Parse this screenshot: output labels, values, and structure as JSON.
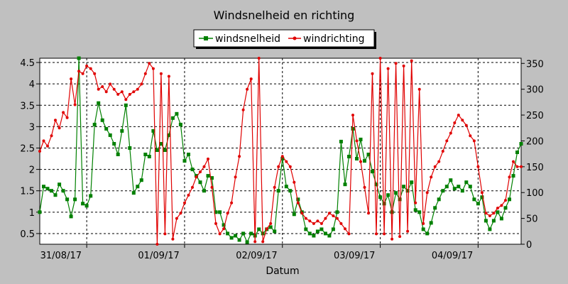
{
  "chart_data": {
    "type": "line",
    "title": "Windsnelheid en richting",
    "xlabel": "Datum",
    "ylabel": "",
    "y2label": "",
    "legend_position": "top-center",
    "grid": true,
    "xlim": [
      -0.48,
      4.44
    ],
    "ylim": [
      0.25,
      4.6
    ],
    "y2lim": [
      0,
      360
    ],
    "x_ticks": [
      {
        "x": -0.5,
        "label": "31/08/17"
      },
      {
        "x": 0.5,
        "label": "01/09/17"
      },
      {
        "x": 1.5,
        "label": "02/09/17"
      },
      {
        "x": 2.5,
        "label": "03/09/17"
      },
      {
        "x": 3.5,
        "label": "04/09/17"
      }
    ],
    "y_ticks": [
      "0.5",
      "1",
      "1.5",
      "2",
      "2.5",
      "3",
      "3.5",
      "4",
      "4.5"
    ],
    "y2_ticks": [
      "0",
      "50",
      "100",
      "150",
      "200",
      "250",
      "300",
      "350"
    ],
    "colors": {
      "windsnelheid": "#008000",
      "windrichting": "#e00000"
    },
    "series": [
      {
        "name": "windsnelheid",
        "axis": "left",
        "marker": "square",
        "x": [
          -0.48,
          -0.44,
          -0.4,
          -0.36,
          -0.32,
          -0.28,
          -0.24,
          -0.2,
          -0.16,
          -0.12,
          -0.08,
          -0.04,
          0.0,
          0.04,
          0.08,
          0.12,
          0.16,
          0.2,
          0.24,
          0.28,
          0.32,
          0.36,
          0.4,
          0.44,
          0.48,
          0.52,
          0.56,
          0.6,
          0.64,
          0.68,
          0.72,
          0.76,
          0.8,
          0.84,
          0.88,
          0.92,
          0.96,
          1.0,
          1.04,
          1.08,
          1.12,
          1.16,
          1.2,
          1.24,
          1.28,
          1.32,
          1.36,
          1.4,
          1.44,
          1.48,
          1.52,
          1.56,
          1.6,
          1.64,
          1.68,
          1.72,
          1.76,
          1.8,
          1.84,
          1.88,
          1.92,
          1.96,
          2.0,
          2.04,
          2.08,
          2.12,
          2.16,
          2.2,
          2.24,
          2.28,
          2.32,
          2.36,
          2.4,
          2.44,
          2.48,
          2.52,
          2.56,
          2.6,
          2.64,
          2.68,
          2.72,
          2.76,
          2.8,
          2.84,
          2.88,
          2.92,
          2.96,
          3.0,
          3.04,
          3.08,
          3.12,
          3.16,
          3.2,
          3.24,
          3.28,
          3.32,
          3.36,
          3.4,
          3.44
        ],
        "y": [
          1.0,
          1.6,
          1.55,
          1.5,
          1.4,
          1.65,
          1.5,
          1.3,
          0.9,
          1.3,
          4.6,
          1.2,
          1.15,
          1.38,
          3.05,
          3.55,
          3.15,
          2.95,
          2.8,
          2.6,
          2.35,
          2.9,
          3.5,
          2.5,
          1.45,
          1.6,
          1.75,
          2.35,
          2.3,
          2.9,
          2.45,
          2.6,
          2.45,
          2.8,
          3.2,
          3.3,
          3.05,
          2.2,
          2.35,
          2.0,
          1.85,
          1.7,
          1.5,
          1.85,
          1.8,
          1.0,
          1.0,
          0.7,
          0.5,
          0.4,
          0.45,
          0.35,
          0.5,
          0.3,
          0.5,
          0.45,
          0.6,
          0.5,
          0.6,
          0.65,
          0.55,
          1.5,
          2.25,
          1.6,
          1.5,
          0.95,
          1.3,
          1.0,
          0.6,
          0.5,
          0.45,
          0.55,
          0.6,
          0.5,
          0.45,
          0.6,
          1.0,
          2.65,
          1.65,
          2.3,
          2.95,
          2.25,
          2.7,
          2.2,
          2.35,
          1.95,
          1.65,
          1.35,
          1.2,
          1.4,
          1.0,
          1.45,
          1.3,
          1.6,
          1.5,
          1.7,
          1.05,
          1.0,
          0.6
        ],
        "x_ext": [
          3.48,
          3.52,
          3.56,
          3.6,
          3.64,
          3.68,
          3.72,
          3.76,
          3.8,
          3.84,
          3.88,
          3.92,
          3.96,
          4.0,
          4.04,
          4.08,
          4.12,
          4.16,
          4.2,
          4.24,
          4.28,
          4.32,
          4.36,
          4.4,
          4.44
        ],
        "y_ext": [
          0.5,
          0.75,
          1.1,
          1.3,
          1.5,
          1.6,
          1.75,
          1.55,
          1.6,
          1.5,
          1.7,
          1.6,
          1.3,
          1.2,
          1.35,
          0.8,
          0.6,
          0.8,
          1.0,
          0.85,
          1.1,
          1.3,
          1.85,
          2.4,
          2.6
        ]
      },
      {
        "name": "windrichting",
        "axis": "right",
        "marker": "dot",
        "x": [
          -0.48,
          -0.44,
          -0.4,
          -0.36,
          -0.32,
          -0.28,
          -0.24,
          -0.2,
          -0.16,
          -0.12,
          -0.08,
          -0.04,
          0.0,
          0.04,
          0.08,
          0.12,
          0.16,
          0.2,
          0.24,
          0.28,
          0.32,
          0.36,
          0.4,
          0.44,
          0.48,
          0.52,
          0.56,
          0.6,
          0.64,
          0.68,
          0.72,
          0.76,
          0.8,
          0.84,
          0.88,
          0.92,
          0.96,
          1.0,
          1.04,
          1.08,
          1.12,
          1.16,
          1.2,
          1.24,
          1.28,
          1.32,
          1.36,
          1.4,
          1.44,
          1.48,
          1.52,
          1.56,
          1.6,
          1.64,
          1.68,
          1.72,
          1.76,
          1.8,
          1.84,
          1.88,
          1.92,
          1.96,
          2.0,
          2.04,
          2.08,
          2.12,
          2.16,
          2.2,
          2.24,
          2.28,
          2.32,
          2.36,
          2.4,
          2.44,
          2.48,
          2.52,
          2.56,
          2.6,
          2.64,
          2.68,
          2.72,
          2.76,
          2.8,
          2.84,
          2.88,
          2.92,
          2.96,
          3.0,
          3.04,
          3.08,
          3.12,
          3.16,
          3.2,
          3.24,
          3.28,
          3.32,
          3.36,
          3.4,
          3.44
        ],
        "y": [
          180,
          200,
          190,
          210,
          240,
          225,
          255,
          245,
          320,
          270,
          335,
          330,
          345,
          340,
          330,
          300,
          305,
          295,
          310,
          300,
          290,
          295,
          280,
          290,
          295,
          300,
          310,
          330,
          350,
          340,
          0,
          330,
          20,
          325,
          10,
          50,
          60,
          80,
          95,
          110,
          130,
          140,
          150,
          165,
          110,
          40,
          20,
          30,
          60,
          80,
          130,
          170,
          260,
          300,
          320,
          5,
          360,
          5,
          30,
          40,
          110,
          150,
          170,
          160,
          150,
          120,
          80,
          60,
          50,
          45,
          40,
          45,
          40,
          50,
          60,
          55,
          50,
          40,
          30,
          20,
          250,
          200,
          160,
          110,
          60,
          330,
          20,
          360,
          20,
          340,
          10,
          350,
          15,
          345,
          25,
          355,
          80,
          300,
          40
        ],
        "x_ext": [
          3.48,
          3.52,
          3.56,
          3.6,
          3.64,
          3.68,
          3.72,
          3.76,
          3.8,
          3.84,
          3.88,
          3.92,
          3.96,
          4.0,
          4.04,
          4.08,
          4.12,
          4.16,
          4.2,
          4.24,
          4.28,
          4.32,
          4.36,
          4.4,
          4.44
        ],
        "y_ext": [
          100,
          130,
          150,
          160,
          180,
          200,
          215,
          235,
          250,
          240,
          230,
          210,
          200,
          150,
          100,
          60,
          55,
          60,
          70,
          75,
          85,
          130,
          160,
          150,
          150
        ]
      }
    ]
  }
}
